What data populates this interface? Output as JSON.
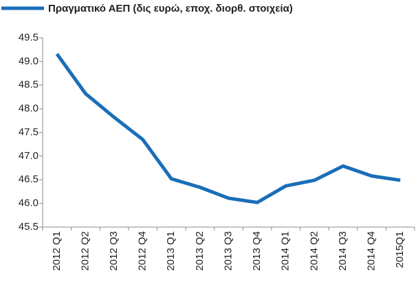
{
  "chart_data": {
    "type": "line",
    "categories": [
      "2012 Q1",
      "2012 Q2",
      "2012 Q3",
      "2012 Q4",
      "2013 Q1",
      "2013 Q2",
      "2013 Q3",
      "2013 Q4",
      "2014 Q1",
      "2014 Q2",
      "2014 Q3",
      "2014 Q4",
      "2015Q1"
    ],
    "series": [
      {
        "name": "Πραγματικό ΑΕΠ (δις ευρώ, εποχ. διορθ. στοιχεία)",
        "color": "#1a6eb8",
        "values": [
          49.16,
          48.32,
          47.82,
          47.35,
          46.52,
          46.34,
          46.11,
          46.02,
          46.37,
          46.49,
          46.79,
          46.58,
          46.49
        ]
      }
    ],
    "ylim": [
      45.5,
      49.5
    ],
    "yticks": [
      45.5,
      {
        "value": 46,
        "label": "46.0"
      },
      46.5,
      {
        "value": 47,
        "label": "47.0"
      },
      47.5,
      {
        "value": 48,
        "label": "48.0"
      },
      48.5,
      {
        "value": 49,
        "label": "49.0"
      },
      49.5
    ],
    "grid": false,
    "legend": "top"
  }
}
